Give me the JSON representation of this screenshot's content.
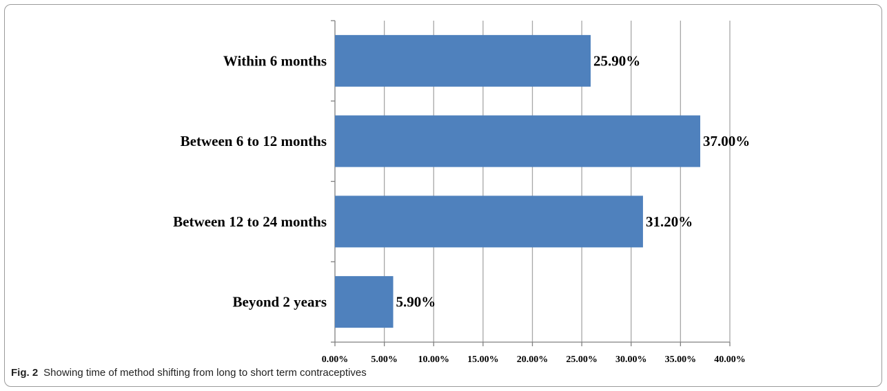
{
  "figure": {
    "label": "Fig. 2",
    "caption": "Showing time of method shifting from long to short term contraceptives"
  },
  "colors": {
    "bar": "#4f81bd",
    "grid": "#a6a6a6",
    "axis": "#7f7f7f"
  },
  "chart_data": {
    "type": "bar",
    "orientation": "horizontal",
    "categories": [
      "Within 6 months",
      "Between 6 to 12 months",
      "Between 12 to 24 months",
      "Beyond 2 years"
    ],
    "values": [
      25.9,
      37.0,
      31.2,
      5.9
    ],
    "value_labels": [
      "25.90%",
      "37.00%",
      "31.20%",
      "5.90%"
    ],
    "xlim": [
      0,
      40
    ],
    "xticks": [
      0,
      5,
      10,
      15,
      20,
      25,
      30,
      35,
      40
    ],
    "xtick_labels": [
      "0.00%",
      "5.00%",
      "10.00%",
      "15.00%",
      "20.00%",
      "25.00%",
      "30.00%",
      "35.00%",
      "40.00%"
    ],
    "grid": "vertical",
    "legend": "none",
    "title": "",
    "xlabel": "",
    "ylabel": ""
  }
}
